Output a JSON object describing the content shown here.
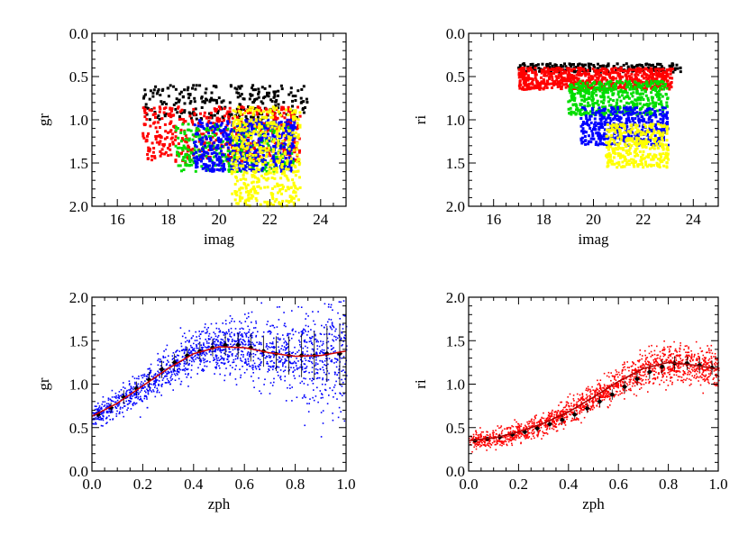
{
  "figure": {
    "panels": 4,
    "layout": "2x2 grid"
  },
  "chart_data": [
    {
      "id": "top-left",
      "type": "scatter",
      "title": "",
      "xlabel": "imag",
      "ylabel": "gr",
      "xlim": [
        15,
        25
      ],
      "ylim": [
        2.0,
        0.0
      ],
      "y_inverted": true,
      "xticks": [
        "16",
        "18",
        "20",
        "22",
        "24"
      ],
      "yticks": [
        "0.0",
        "0.5",
        "1.0",
        "1.5",
        "2.0"
      ],
      "xtick_values": [
        16,
        18,
        20,
        22,
        24
      ],
      "ytick_values": [
        0.0,
        0.5,
        1.0,
        1.5,
        2.0
      ],
      "series": [
        {
          "name": "black",
          "color": "#000000",
          "x_range": [
            17.0,
            23.5
          ],
          "y_range": [
            0.6,
            1.0
          ],
          "count": 260
        },
        {
          "name": "red",
          "color": "#ff0000",
          "x_range": [
            17.0,
            23.2
          ],
          "y_range": [
            0.85,
            1.5
          ],
          "count": 520
        },
        {
          "name": "green",
          "color": "#00dd00",
          "x_range": [
            18.3,
            23.0
          ],
          "y_range": [
            1.05,
            1.6
          ],
          "count": 320
        },
        {
          "name": "blue",
          "color": "#0000ff",
          "x_range": [
            19.0,
            23.0
          ],
          "y_range": [
            1.0,
            1.6
          ],
          "count": 480
        },
        {
          "name": "yellow",
          "color": "#ffff00",
          "x_range": [
            20.5,
            23.2
          ],
          "y_range": [
            0.85,
            2.0
          ],
          "count": 480
        }
      ]
    },
    {
      "id": "top-right",
      "type": "scatter",
      "title": "",
      "xlabel": "imag",
      "ylabel": "ri",
      "xlim": [
        15,
        25
      ],
      "ylim": [
        2.0,
        0.0
      ],
      "y_inverted": true,
      "xticks": [
        "16",
        "18",
        "20",
        "22",
        "24"
      ],
      "yticks": [
        "0.0",
        "0.5",
        "1.0",
        "1.5",
        "2.0"
      ],
      "xtick_values": [
        16,
        18,
        20,
        22,
        24
      ],
      "ytick_values": [
        0.0,
        0.5,
        1.0,
        1.5,
        2.0
      ],
      "series": [
        {
          "name": "black",
          "color": "#000000",
          "x_range": [
            17.0,
            23.5
          ],
          "y_range": [
            0.35,
            0.45
          ],
          "count": 220
        },
        {
          "name": "red",
          "color": "#ff0000",
          "x_range": [
            17.0,
            23.2
          ],
          "y_range": [
            0.4,
            0.65
          ],
          "count": 700
        },
        {
          "name": "green",
          "color": "#00dd00",
          "x_range": [
            19.0,
            23.0
          ],
          "y_range": [
            0.55,
            0.95
          ],
          "count": 450
        },
        {
          "name": "blue",
          "color": "#0000ff",
          "x_range": [
            19.5,
            23.0
          ],
          "y_range": [
            0.85,
            1.3
          ],
          "count": 420
        },
        {
          "name": "yellow",
          "color": "#ffff00",
          "x_range": [
            20.5,
            23.0
          ],
          "y_range": [
            1.05,
            1.55
          ],
          "count": 350
        }
      ]
    },
    {
      "id": "bottom-left",
      "type": "scatter",
      "title": "",
      "xlabel": "zph",
      "ylabel": "gr",
      "xlim": [
        0.0,
        1.0
      ],
      "ylim": [
        0.0,
        2.0
      ],
      "y_inverted": false,
      "xticks": [
        "0.0",
        "0.2",
        "0.4",
        "0.6",
        "0.8",
        "1.0"
      ],
      "yticks": [
        "0.0",
        "0.5",
        "1.0",
        "1.5",
        "2.0"
      ],
      "xtick_values": [
        0.0,
        0.2,
        0.4,
        0.6,
        0.8,
        1.0
      ],
      "ytick_values": [
        0.0,
        0.5,
        1.0,
        1.5,
        2.0
      ],
      "points_color": "#0000ff",
      "curve_color": "#cc0000",
      "curve_x": [
        0.0,
        0.1,
        0.2,
        0.3,
        0.4,
        0.5,
        0.6,
        0.7,
        0.8,
        0.9,
        1.0
      ],
      "curve_y": [
        0.63,
        0.78,
        0.98,
        1.18,
        1.35,
        1.43,
        1.42,
        1.36,
        1.32,
        1.33,
        1.38
      ],
      "binned_x": [
        0.025,
        0.075,
        0.125,
        0.175,
        0.225,
        0.275,
        0.325,
        0.375,
        0.425,
        0.475,
        0.525,
        0.575,
        0.625,
        0.675,
        0.725,
        0.775,
        0.825,
        0.875,
        0.925,
        0.975
      ],
      "binned_y": [
        0.65,
        0.73,
        0.85,
        0.95,
        1.05,
        1.17,
        1.25,
        1.33,
        1.38,
        1.42,
        1.45,
        1.45,
        1.42,
        1.38,
        1.35,
        1.33,
        1.33,
        1.33,
        1.35,
        1.35
      ],
      "binned_err": [
        0.04,
        0.06,
        0.08,
        0.08,
        0.09,
        0.1,
        0.1,
        0.1,
        0.1,
        0.1,
        0.12,
        0.14,
        0.16,
        0.18,
        0.2,
        0.22,
        0.25,
        0.28,
        0.32,
        0.35
      ]
    },
    {
      "id": "bottom-right",
      "type": "scatter",
      "title": "",
      "xlabel": "zph",
      "ylabel": "ri",
      "xlim": [
        0.0,
        1.0
      ],
      "ylim": [
        0.0,
        2.0
      ],
      "y_inverted": false,
      "xticks": [
        "0.0",
        "0.2",
        "0.4",
        "0.6",
        "0.8",
        "1.0"
      ],
      "yticks": [
        "0.0",
        "0.5",
        "1.0",
        "1.5",
        "2.0"
      ],
      "xtick_values": [
        0.0,
        0.2,
        0.4,
        0.6,
        0.8,
        1.0
      ],
      "ytick_values": [
        0.0,
        0.5,
        1.0,
        1.5,
        2.0
      ],
      "points_color": "#ff0000",
      "curve_color": "#aa0000",
      "curve_x": [
        0.0,
        0.1,
        0.2,
        0.3,
        0.4,
        0.5,
        0.6,
        0.7,
        0.8,
        0.9,
        1.0
      ],
      "curve_y": [
        0.35,
        0.38,
        0.45,
        0.55,
        0.68,
        0.85,
        1.03,
        1.18,
        1.25,
        1.22,
        1.17
      ],
      "binned_x": [
        0.025,
        0.075,
        0.125,
        0.175,
        0.225,
        0.275,
        0.325,
        0.375,
        0.425,
        0.475,
        0.525,
        0.575,
        0.625,
        0.675,
        0.725,
        0.775,
        0.825,
        0.875,
        0.925,
        0.975
      ],
      "binned_y": [
        0.35,
        0.37,
        0.39,
        0.42,
        0.45,
        0.49,
        0.54,
        0.59,
        0.65,
        0.72,
        0.8,
        0.88,
        0.97,
        1.06,
        1.14,
        1.2,
        1.24,
        1.24,
        1.22,
        1.19
      ],
      "binned_err": [
        0.02,
        0.02,
        0.03,
        0.03,
        0.03,
        0.04,
        0.04,
        0.05,
        0.05,
        0.05,
        0.06,
        0.06,
        0.07,
        0.07,
        0.08,
        0.08,
        0.08,
        0.08,
        0.08,
        0.08
      ]
    }
  ]
}
